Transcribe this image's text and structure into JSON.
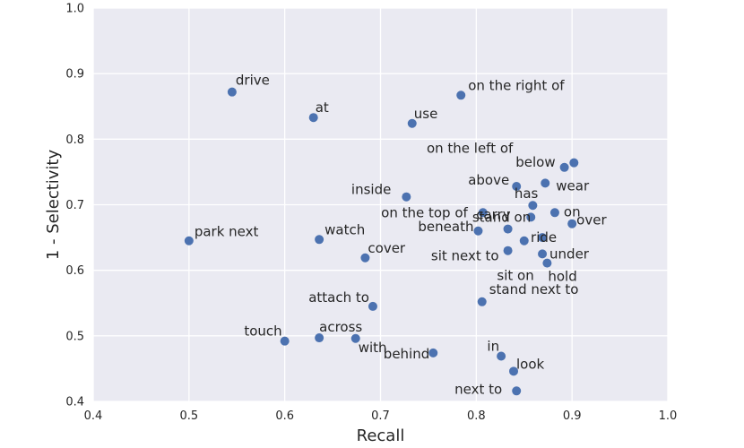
{
  "chart_data": {
    "type": "scatter",
    "title": "",
    "xlabel": "Recall",
    "ylabel": "1 - Selectivity",
    "xlim": [
      0.4,
      1.0
    ],
    "ylim": [
      0.4,
      1.0
    ],
    "xticks": [
      "0.4",
      "0.5",
      "0.6",
      "0.7",
      "0.8",
      "0.9",
      "1.0"
    ],
    "yticks": [
      "0.4",
      "0.5",
      "0.6",
      "0.7",
      "0.8",
      "0.9",
      "1.0"
    ],
    "grid": true,
    "style": "seaborn-darkgrid",
    "colors": {
      "background": "#eaeaf2",
      "grid": "#ffffff",
      "marker": "#4c72b0",
      "text": "#262626"
    },
    "points": [
      {
        "label": "drive",
        "x": 0.545,
        "y": 0.872
      },
      {
        "label": "at",
        "x": 0.63,
        "y": 0.833
      },
      {
        "label": "on the right of",
        "x": 0.784,
        "y": 0.867
      },
      {
        "label": "use",
        "x": 0.733,
        "y": 0.824
      },
      {
        "label": "on the left of",
        "x": 0.902,
        "y": 0.764
      },
      {
        "label": "below",
        "x": 0.892,
        "y": 0.757
      },
      {
        "label": "above",
        "x": 0.842,
        "y": 0.728
      },
      {
        "label": "wear",
        "x": 0.872,
        "y": 0.733
      },
      {
        "label": "inside",
        "x": 0.727,
        "y": 0.712
      },
      {
        "label": "has",
        "x": 0.859,
        "y": 0.699
      },
      {
        "label": "on the top of",
        "x": 0.807,
        "y": 0.688
      },
      {
        "label": "on",
        "x": 0.882,
        "y": 0.688
      },
      {
        "label": "stand on",
        "x": 0.857,
        "y": 0.681
      },
      {
        "label": "over",
        "x": 0.9,
        "y": 0.671
      },
      {
        "label": "carry",
        "x": 0.833,
        "y": 0.663
      },
      {
        "label": "beneath",
        "x": 0.802,
        "y": 0.66
      },
      {
        "label": "ride",
        "x": 0.869,
        "y": 0.65
      },
      {
        "label": "park next",
        "x": 0.5,
        "y": 0.645
      },
      {
        "label": "watch",
        "x": 0.636,
        "y": 0.647
      },
      {
        "label": "sit next to",
        "x": 0.833,
        "y": 0.63
      },
      {
        "label": "under",
        "x": 0.869,
        "y": 0.625
      },
      {
        "label": "cover",
        "x": 0.684,
        "y": 0.619
      },
      {
        "label": "hold",
        "x": 0.874,
        "y": 0.611
      },
      {
        "label": "sit on",
        "x": 0.85,
        "y": 0.645
      },
      {
        "label": "attach to",
        "x": 0.692,
        "y": 0.545
      },
      {
        "label": "stand next to",
        "x": 0.806,
        "y": 0.552
      },
      {
        "label": "touch",
        "x": 0.6,
        "y": 0.492
      },
      {
        "label": "across",
        "x": 0.636,
        "y": 0.497
      },
      {
        "label": "with",
        "x": 0.674,
        "y": 0.496
      },
      {
        "label": "behind",
        "x": 0.755,
        "y": 0.474
      },
      {
        "label": "in",
        "x": 0.826,
        "y": 0.469
      },
      {
        "label": "look",
        "x": 0.839,
        "y": 0.446
      },
      {
        "label": "next to",
        "x": 0.842,
        "y": 0.416
      }
    ]
  }
}
